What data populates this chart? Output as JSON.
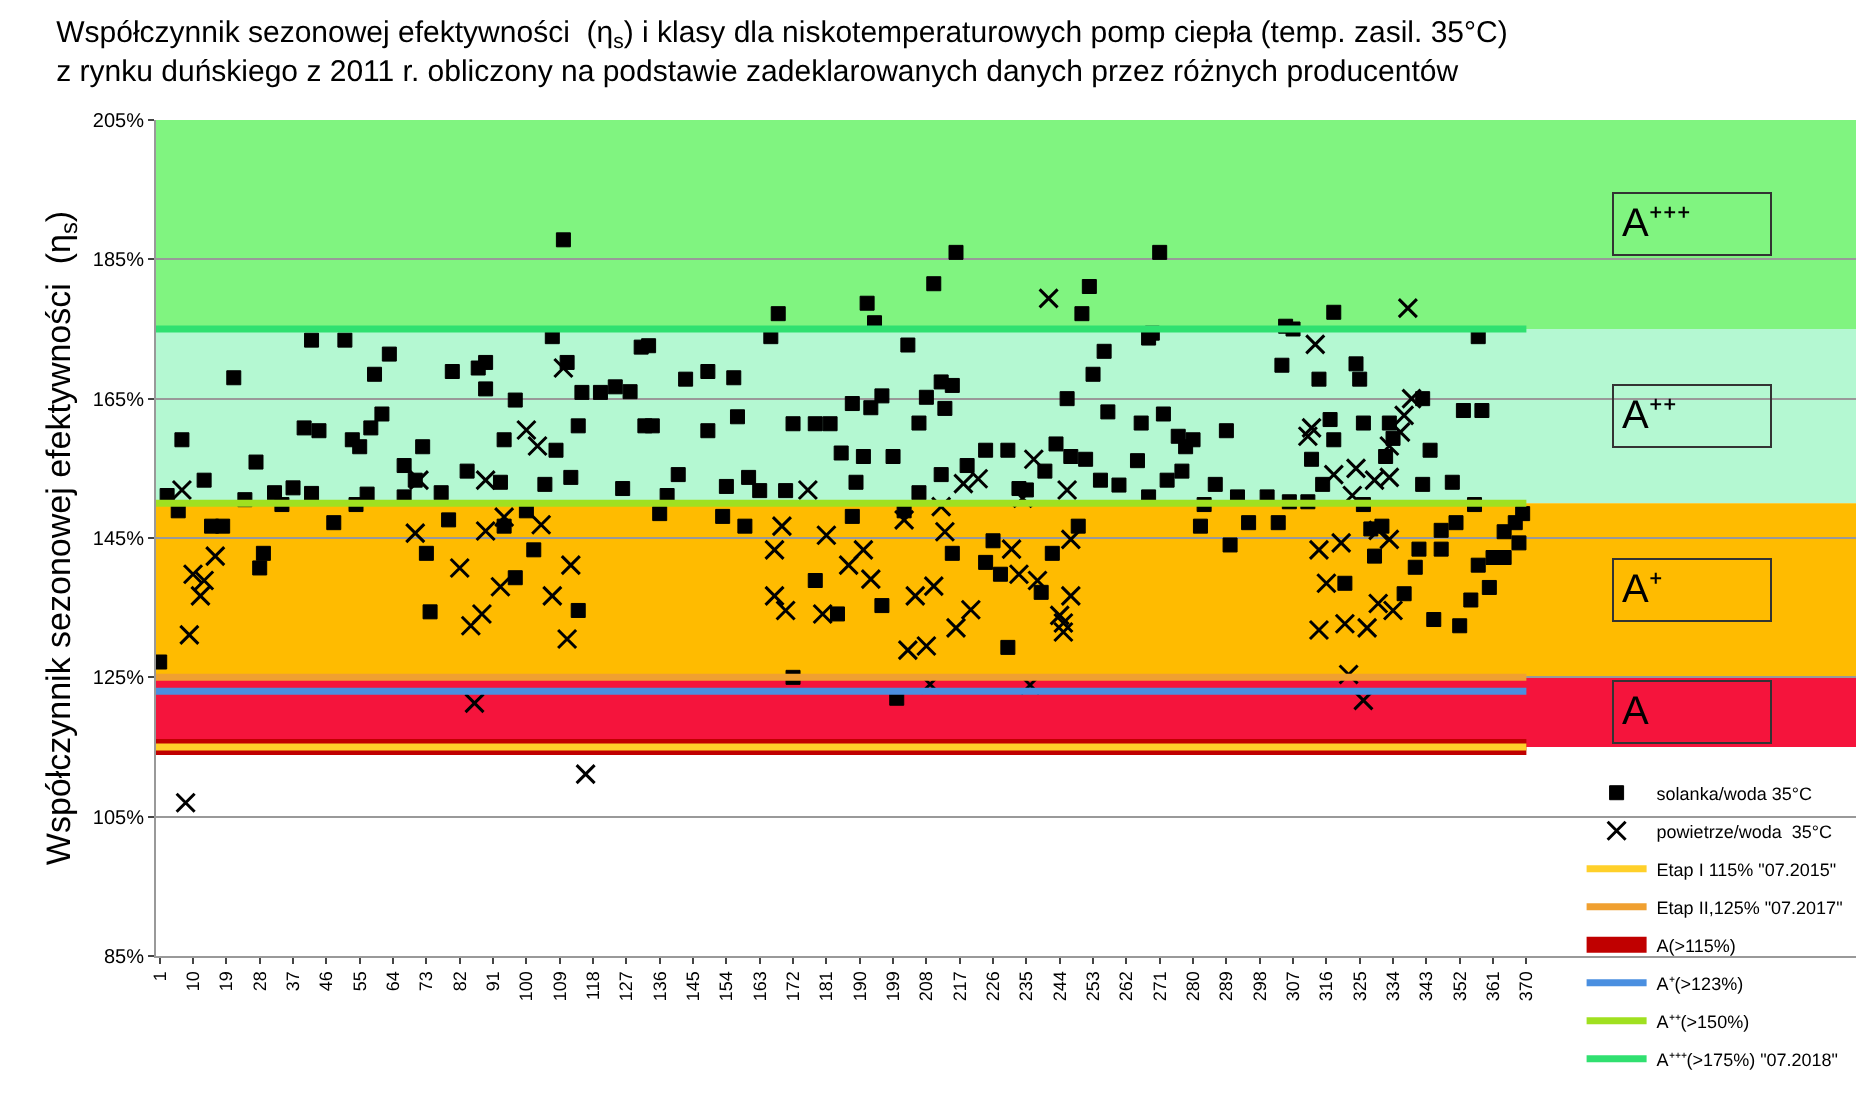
{
  "chart_data": {
    "type": "scatter",
    "title": "Współczynnik sezonowej efektywności  (η$_{s}$) i klasy dla niskotemperaturowych pomp ciepła (temp. zasil. 35°C)\nz rynku duńskiego z 2011 r. obliczony na podstawie zadeklarowanych danych przez różnych producentów",
    "ylabel": "Współczynnik sezonowej efektywności  (η$_{s}$)",
    "xlim": [
      0,
      459
    ],
    "xticks": [
      1,
      10,
      19,
      28,
      37,
      46,
      55,
      64,
      73,
      82,
      91,
      100,
      109,
      118,
      127,
      136,
      145,
      154,
      163,
      172,
      181,
      190,
      199,
      208,
      217,
      226,
      235,
      244,
      253,
      262,
      271,
      280,
      289,
      298,
      307,
      316,
      325,
      334,
      343,
      352,
      361,
      370
    ],
    "ylim": [
      85,
      205
    ],
    "yticks": [
      {
        "value": 85,
        "label": "85%"
      },
      {
        "value": 105,
        "label": "105%"
      },
      {
        "value": 125,
        "label": "125%"
      },
      {
        "value": 145,
        "label": "145%"
      },
      {
        "value": 165,
        "label": "165%"
      },
      {
        "value": 185,
        "label": "185%"
      },
      {
        "value": 205,
        "label": "205%"
      }
    ],
    "grid": "y",
    "legend": "bottom right",
    "series": [
      {
        "name": "solanka/woda 35°C",
        "color": "#000000",
        "marker": "square",
        "x": [
          1,
          3,
          6,
          7,
          13,
          15,
          18,
          21,
          24,
          27,
          28,
          29,
          32,
          34,
          37,
          40,
          42,
          42,
          44,
          48,
          51,
          53,
          54,
          55,
          57,
          58,
          59,
          61,
          63,
          67,
          67,
          70,
          72,
          73,
          74,
          77,
          79,
          80,
          84,
          87,
          89,
          89,
          93,
          94,
          94,
          97,
          97,
          100,
          102,
          105,
          107,
          108,
          110,
          111,
          112,
          114,
          114,
          115,
          120,
          124,
          126,
          128,
          131,
          132,
          133,
          134,
          136,
          138,
          141,
          143,
          149,
          149,
          153,
          154,
          156,
          157,
          159,
          160,
          163,
          166,
          168,
          170,
          172,
          172,
          178,
          178,
          182,
          184,
          185,
          188,
          188,
          189,
          191,
          192,
          193,
          194,
          196,
          196,
          199,
          200,
          202,
          203,
          206,
          206,
          208,
          210,
          212,
          212,
          213,
          215,
          215,
          216,
          219,
          224,
          224,
          226,
          228,
          230,
          230,
          233,
          235,
          239,
          240,
          242,
          243,
          246,
          247,
          249,
          250,
          251,
          252,
          253,
          255,
          256,
          257,
          260,
          265,
          266,
          268,
          268,
          269,
          271,
          272,
          273,
          276,
          277,
          278,
          280,
          282,
          283,
          286,
          289,
          290,
          292,
          295,
          300,
          303,
          304,
          305,
          306,
          307,
          311,
          312,
          314,
          315,
          317,
          318,
          318,
          321,
          324,
          325,
          326,
          326,
          328,
          329,
          331,
          332,
          333,
          334,
          337,
          340,
          341,
          342,
          342,
          344,
          345,
          347,
          347,
          350,
          351,
          352,
          353,
          355,
          356,
          357,
          357,
          358,
          360,
          361,
          364,
          364,
          367,
          368,
          369
        ],
        "values": [
          127.2,
          151.1,
          148.9,
          159.1,
          153.3,
          146.7,
          146.7,
          168.0,
          150.5,
          155.9,
          140.7,
          142.8,
          151.5,
          149.8,
          152.2,
          160.8,
          173.4,
          151.4,
          160.4,
          147.2,
          173.4,
          159.1,
          149.8,
          158.1,
          151.3,
          160.8,
          168.5,
          162.8,
          171.4,
          150.9,
          155.4,
          153.3,
          158.1,
          142.8,
          134.4,
          151.5,
          147.6,
          168.9,
          154.6,
          169.4,
          166.4,
          170.2,
          153.0,
          159.1,
          146.7,
          164.8,
          139.3,
          148.9,
          143.3,
          152.7,
          173.9,
          157.6,
          187.8,
          170.2,
          153.7,
          134.6,
          161.1,
          165.9,
          165.9,
          166.7,
          152.1,
          166.0,
          172.4,
          161.1,
          172.6,
          161.1,
          148.5,
          151.1,
          154.1,
          167.8,
          168.9,
          160.4,
          148.1,
          152.4,
          168.0,
          162.4,
          146.7,
          153.7,
          151.8,
          173.9,
          177.2,
          151.8,
          161.4,
          125.0,
          161.4,
          138.9,
          161.4,
          134.1,
          157.2,
          148.1,
          164.3,
          153.0,
          156.7,
          178.7,
          163.7,
          175.9,
          165.4,
          135.3,
          156.7,
          122.0,
          148.9,
          172.7,
          151.5,
          161.5,
          165.2,
          181.5,
          167.4,
          154.1,
          163.6,
          166.9,
          142.8,
          186.0,
          155.4,
          157.6,
          141.5,
          144.6,
          139.8,
          157.6,
          129.3,
          152.1,
          151.9,
          137.2,
          154.6,
          142.8,
          158.5,
          165.0,
          156.7,
          146.7,
          177.2,
          156.3,
          181.1,
          168.5,
          153.3,
          171.8,
          163.1,
          152.6,
          156.1,
          161.5,
          150.9,
          173.7,
          174.4,
          186.0,
          162.8,
          153.3,
          159.6,
          154.6,
          158.1,
          159.1,
          146.7,
          149.8,
          152.7,
          160.4,
          144.0,
          150.9,
          147.2,
          150.9,
          147.2,
          169.8,
          175.4,
          150.2,
          175.0,
          150.2,
          156.3,
          167.8,
          152.7,
          162.0,
          159.1,
          177.4,
          138.5,
          170.0,
          167.8,
          149.8,
          161.5,
          146.3,
          142.4,
          146.7,
          156.7,
          161.5,
          159.3,
          137.0,
          140.8,
          143.4,
          152.7,
          165.0,
          157.6,
          133.3,
          143.4,
          146.1,
          153.0,
          147.2,
          132.4,
          163.3,
          136.1,
          149.8,
          141.1,
          173.9,
          163.3,
          137.9,
          142.2,
          142.2,
          145.9,
          147.2,
          144.3,
          148.5
        ]
      },
      {
        "name": "powietrze/woda  35°C",
        "color": "#000000",
        "marker": "cross",
        "x": [
          7,
          8,
          9,
          10,
          12,
          13,
          16,
          70,
          71,
          82,
          85,
          86,
          88,
          89,
          89,
          93,
          94,
          100,
          103,
          104,
          107,
          110,
          111,
          112,
          116,
          167,
          167,
          169,
          170,
          176,
          180,
          181,
          187,
          191,
          193,
          202,
          203,
          205,
          208,
          209,
          210,
          212,
          213,
          216,
          218,
          220,
          222,
          231,
          233,
          234,
          236,
          237,
          238,
          241,
          244,
          245,
          246,
          247,
          245,
          247,
          311,
          312,
          313,
          314,
          314,
          316,
          318,
          320,
          321,
          322,
          323,
          324,
          326,
          327,
          329,
          330,
          330,
          333,
          333,
          333,
          334,
          336,
          337,
          338,
          339
        ],
        "values": [
          151.9,
          107.0,
          131.1,
          139.8,
          136.7,
          138.9,
          142.4,
          145.7,
          153.3,
          140.7,
          132.4,
          121.3,
          134.1,
          153.3,
          146.0,
          138.0,
          148.0,
          160.5,
          158.2,
          146.9,
          136.7,
          169.4,
          130.5,
          141.1,
          111.1,
          143.3,
          136.7,
          146.7,
          134.6,
          151.9,
          134.1,
          145.4,
          141.1,
          143.3,
          139.1,
          147.6,
          128.9,
          136.7,
          129.5,
          124.0,
          138.1,
          149.5,
          145.9,
          132.1,
          152.8,
          134.7,
          153.5,
          143.4,
          139.8,
          150.7,
          123.9,
          156.3,
          138.9,
          179.4,
          133.9,
          131.5,
          151.9,
          136.7,
          132.8,
          144.8,
          159.6,
          160.8,
          172.8,
          143.3,
          131.8,
          138.5,
          154.1,
          144.3,
          132.7,
          125.4,
          151.1,
          155.0,
          121.7,
          132.1,
          153.3,
          135.6,
          146.1,
          153.7,
          144.8,
          158.2,
          134.6,
          160.2,
          162.6,
          178.0,
          165.0
        ]
      }
    ],
    "bands": [
      {
        "axis": "y",
        "from": 175,
        "to": 205,
        "label": "A⁺⁺⁺",
        "color": "#80f480"
      },
      {
        "axis": "y",
        "from": 150,
        "to": 175,
        "label": "A⁺⁺",
        "color": "#b4f8d2"
      },
      {
        "axis": "y",
        "from": 125,
        "to": 150,
        "label": "A⁺",
        "color": "#ffbb00"
      },
      {
        "axis": "y",
        "from": 115,
        "to": 125,
        "label": "A",
        "color": "#f5143c"
      }
    ],
    "ref_lines": [
      {
        "axis": "y",
        "value": 115,
        "label": "Etap I 115% \"07.2015\"",
        "color": "#ffd02a"
      },
      {
        "axis": "y",
        "value": 125,
        "label": "Etap II,125% \"07.2017\"",
        "color": "#f0a030"
      },
      {
        "axis": "y",
        "value": 115,
        "label": "A(>115%)",
        "color": "#c00000"
      },
      {
        "axis": "y",
        "value": 123,
        "label": "A⁺(>123%)",
        "color": "#4a8fe0"
      },
      {
        "axis": "y",
        "value": 150,
        "label": "A⁺⁺(>150%)",
        "color": "#a0e020"
      },
      {
        "axis": "y",
        "value": 175,
        "label": "A⁺⁺⁺(>175%) \"07.2018\"",
        "color": "#30e070"
      }
    ]
  }
}
